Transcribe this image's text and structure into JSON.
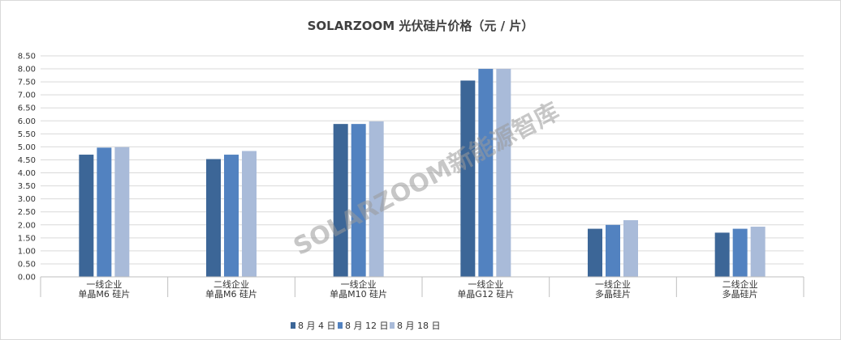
{
  "chart_data": {
    "type": "bar",
    "title": "SOLARZOOM 光伏硅片价格（元 / 片）",
    "categories": [
      [
        "一线企业",
        "单晶M6 硅片"
      ],
      [
        "二线企业",
        "单晶M6 硅片"
      ],
      [
        "一线企业",
        "单晶M10 硅片"
      ],
      [
        "一线企业",
        "单晶G12 硅片"
      ],
      [
        "一线企业",
        "多晶硅片"
      ],
      [
        "二线企业",
        "多晶硅片"
      ]
    ],
    "series": [
      {
        "name": "8 月 4 日",
        "color": "#3c6697",
        "values": [
          4.7,
          4.53,
          5.88,
          7.55,
          1.85,
          1.7
        ]
      },
      {
        "name": "8 月 12 日",
        "color": "#5282c0",
        "values": [
          4.97,
          4.7,
          5.88,
          8.0,
          2.0,
          1.85
        ]
      },
      {
        "name": "8 月 18 日",
        "color": "#a9bbd9",
        "values": [
          4.99,
          4.84,
          5.98,
          8.0,
          2.18,
          1.93
        ]
      }
    ],
    "y_ticks": [
      "0.00",
      "0.50",
      "1.00",
      "1.50",
      "2.00",
      "2.50",
      "3.00",
      "3.50",
      "4.00",
      "4.50",
      "5.00",
      "5.50",
      "6.00",
      "6.50",
      "7.00",
      "7.50",
      "8.00",
      "8.50"
    ],
    "ylim": [
      0,
      8.5
    ],
    "grid": true,
    "legend_position": "bottom",
    "watermark": "SOLARZOOM新能源智库"
  }
}
